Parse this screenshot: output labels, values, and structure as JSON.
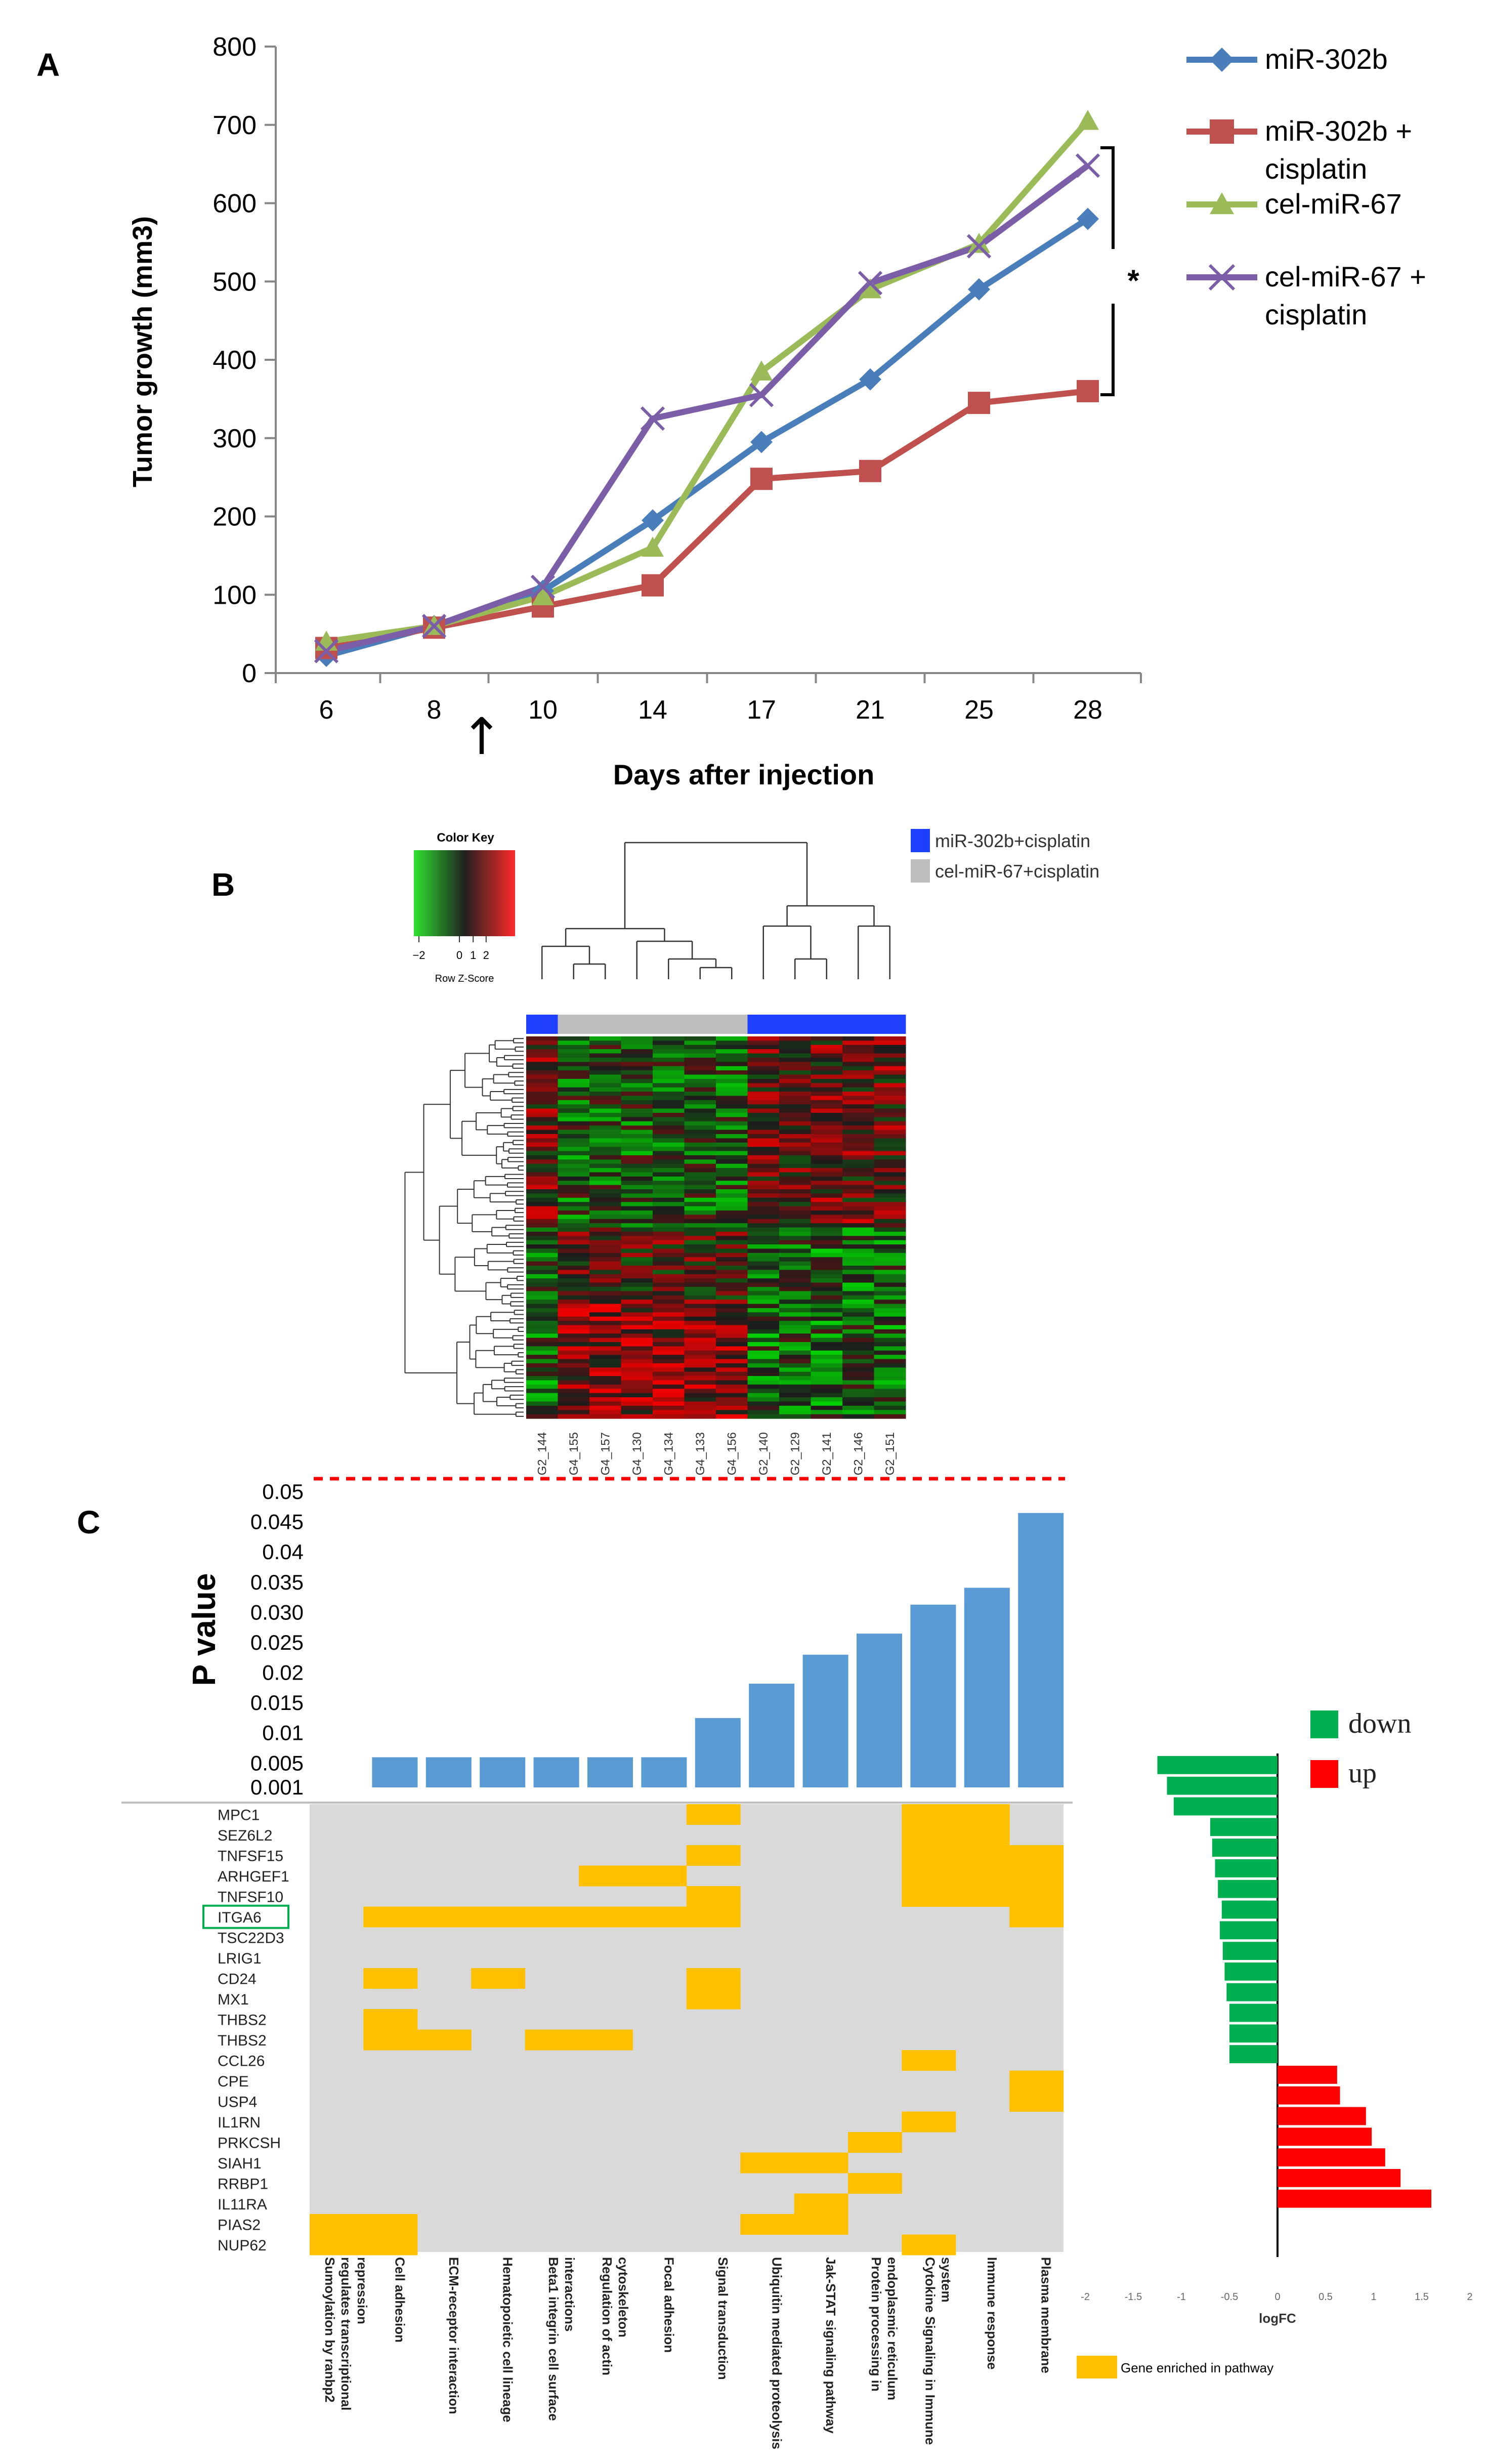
{
  "colors": {
    "blue": "#4A7EBB",
    "red": "#C0504D",
    "green": "#9BBB59",
    "purple": "#7B5EA7",
    "barBlue": "#5B9BD5",
    "gold": "#FFC000",
    "grey": "#D9D9D9",
    "down": "#00B050",
    "up": "#FF0000",
    "dash": "#FF0000"
  },
  "chart_data": [
    {
      "panel": "A",
      "type": "line",
      "xlabel": "Days after injection",
      "ylabel": "Tumor growth (mm3)",
      "categories": [
        "6",
        "8",
        "10",
        "14",
        "17",
        "21",
        "25",
        "28"
      ],
      "ylim": [
        0,
        800
      ],
      "yticks": [
        "0",
        "100",
        "200",
        "300",
        "400",
        "500",
        "600",
        "700",
        "800"
      ],
      "arrow_glyph": "↑",
      "significance": "*",
      "series": [
        {
          "name": "miR-302b",
          "marker": "diamond",
          "color": "#4A7EBB",
          "values": [
            22,
            60,
            105,
            195,
            295,
            375,
            490,
            580
          ]
        },
        {
          "name": "miR-302b + cisplatin",
          "legend_lines": [
            "miR-302b +",
            "cisplatin"
          ],
          "marker": "square",
          "color": "#C0504D",
          "values": [
            32,
            58,
            85,
            112,
            248,
            258,
            345,
            360
          ]
        },
        {
          "name": "cel-miR-67",
          "marker": "triangle",
          "color": "#9BBB59",
          "values": [
            40,
            60,
            98,
            160,
            385,
            490,
            548,
            705
          ]
        },
        {
          "name": "cel-miR-67 + cisplatin",
          "legend_lines": [
            "cel-miR-67 +",
            "cisplatin"
          ],
          "marker": "x",
          "color": "#7B5EA7",
          "values": [
            28,
            60,
            110,
            325,
            355,
            498,
            545,
            648
          ]
        }
      ]
    },
    {
      "panel": "B",
      "type": "heatmap",
      "color_key_title": "Color Key",
      "color_key_label": "Row Z-Score",
      "color_key_ticks": [
        "−2",
        "0",
        "1",
        "2"
      ],
      "legend": [
        {
          "label": "miR-302b+cisplatin",
          "color": "#1F3FFF"
        },
        {
          "label": "cel-miR-67+cisplatin",
          "color": "#BEBEBE"
        }
      ],
      "samples": [
        "G2_144",
        "G4_155",
        "G4_157",
        "G4_130",
        "G4_134",
        "G4_133",
        "G4_156",
        "G2_140",
        "G2_129",
        "G2_141",
        "G2_146",
        "G2_151"
      ],
      "groups": [
        "miR-302b+cisplatin",
        "cel-miR-67+cisplatin",
        "cel-miR-67+cisplatin",
        "cel-miR-67+cisplatin",
        "cel-miR-67+cisplatin",
        "cel-miR-67+cisplatin",
        "cel-miR-67+cisplatin",
        "miR-302b+cisplatin",
        "miR-302b+cisplatin",
        "miR-302b+cisplatin",
        "miR-302b+cisplatin",
        "miR-302b+cisplatin"
      ]
    },
    {
      "panel": "C",
      "type": "bar",
      "ylabel": "P value",
      "yticks": [
        "0.001",
        "0.005",
        "0.01",
        "0.015",
        "0.02",
        "0.025",
        "0.030",
        "0.035",
        "0.04",
        "0.045",
        "0.05"
      ],
      "threshold": 0.05,
      "pathways": [
        "Sumoylation by ranbp2 regulates transcriptional repression",
        "Cell adhesion",
        "ECM-receptor interaction",
        "Hematopoietic cell lineage",
        "Beta1 integrin cell surface interactions",
        "Regulation of actin cytoskeleton",
        "Focal adhesion",
        "Signal transduction",
        "Ubiquitin mediated proteolysis",
        "Jak-STAT signaling pathway",
        "Protein processing in endoplasmic reticulum",
        "Cytokine Signaling in Immune system",
        "Immune response",
        "Plasma membrane"
      ],
      "pathway_label_lines": [
        [
          "Sumoylation by ranbp2",
          "regulates transcriptional",
          "repression"
        ],
        [
          "Cell adhesion"
        ],
        [
          "ECM-receptor interaction"
        ],
        [
          "Hematopoietic cell lineage"
        ],
        [
          "Beta1 integrin cell surface",
          "interactions"
        ],
        [
          "Regulation of actin",
          "cytoskeleton"
        ],
        [
          "Focal adhesion"
        ],
        [
          "Signal transduction"
        ],
        [
          "Ubiquitin mediated proteolysis"
        ],
        [
          "Jak-STAT signaling pathway"
        ],
        [
          "Protein processing in",
          "endoplasmic reticulum"
        ],
        [
          "Cytokine Signaling in Immune",
          "system"
        ],
        [
          "Immune response"
        ],
        [
          "Plasma membrane"
        ]
      ],
      "values": [
        null,
        0.006,
        0.006,
        0.006,
        0.006,
        0.006,
        0.006,
        0.0125,
        0.0182,
        0.023,
        0.0265,
        0.0313,
        0.0341,
        0.0465
      ],
      "genes": [
        "MPC1",
        "SEZ6L2",
        "TNFSF15",
        "ARHGEF1",
        "TNFSF10",
        "ITGA6",
        "TSC22D3",
        "LRIG1",
        "CD24",
        "MX1",
        "THBS2",
        "THBS2",
        "CCL26",
        "CPE",
        "USP4",
        "IL1RN",
        "PRKCSH",
        "SIAH1",
        "RRBP1",
        "IL11RA",
        "PIAS2",
        "NUP62"
      ],
      "highlighted_gene": "ITGA6",
      "enrichment": [
        [
          0,
          7
        ],
        [
          0,
          11
        ],
        [
          0,
          12
        ],
        [
          1,
          11
        ],
        [
          1,
          12
        ],
        [
          2,
          7
        ],
        [
          2,
          11
        ],
        [
          2,
          12
        ],
        [
          2,
          13
        ],
        [
          3,
          5
        ],
        [
          3,
          6
        ],
        [
          3,
          11
        ],
        [
          3,
          12
        ],
        [
          3,
          13
        ],
        [
          4,
          7
        ],
        [
          4,
          11
        ],
        [
          4,
          12
        ],
        [
          4,
          13
        ],
        [
          5,
          1
        ],
        [
          5,
          2
        ],
        [
          5,
          3
        ],
        [
          5,
          4
        ],
        [
          5,
          5
        ],
        [
          5,
          6
        ],
        [
          5,
          7
        ],
        [
          5,
          13
        ],
        [
          8,
          1
        ],
        [
          8,
          3
        ],
        [
          8,
          7
        ],
        [
          9,
          7
        ],
        [
          10,
          1
        ],
        [
          11,
          1
        ],
        [
          11,
          2
        ],
        [
          11,
          4
        ],
        [
          11,
          5
        ],
        [
          12,
          11
        ],
        [
          13,
          13
        ],
        [
          14,
          13
        ],
        [
          15,
          11
        ],
        [
          16,
          10
        ],
        [
          17,
          8
        ],
        [
          17,
          9
        ],
        [
          18,
          10
        ],
        [
          19,
          9
        ],
        [
          20,
          0
        ],
        [
          20,
          1
        ],
        [
          20,
          8
        ],
        [
          20,
          9
        ],
        [
          21,
          0
        ],
        [
          21,
          1
        ],
        [
          21,
          11
        ]
      ],
      "enrichment_legend": "Gene enriched in pathway",
      "logfc": [
        -1.25,
        -1.15,
        -1.08,
        -0.7,
        -0.68,
        -0.65,
        -0.62,
        -0.58,
        -0.6,
        -0.57,
        -0.55,
        -0.53,
        -0.5,
        -0.5,
        -0.5,
        0.62,
        0.65,
        0.92,
        0.98,
        1.12,
        1.28,
        1.6
      ],
      "logfc_axis": [
        "-2",
        "-1.5",
        "-1",
        "-0.5",
        "0",
        "0.5",
        "1",
        "1.5",
        "2"
      ],
      "logfc_label": "logFC",
      "legend": [
        {
          "label": "down",
          "color": "#00B050"
        },
        {
          "label": "up",
          "color": "#FF0000"
        }
      ]
    }
  ],
  "panel_labels": [
    "A",
    "B",
    "C"
  ]
}
